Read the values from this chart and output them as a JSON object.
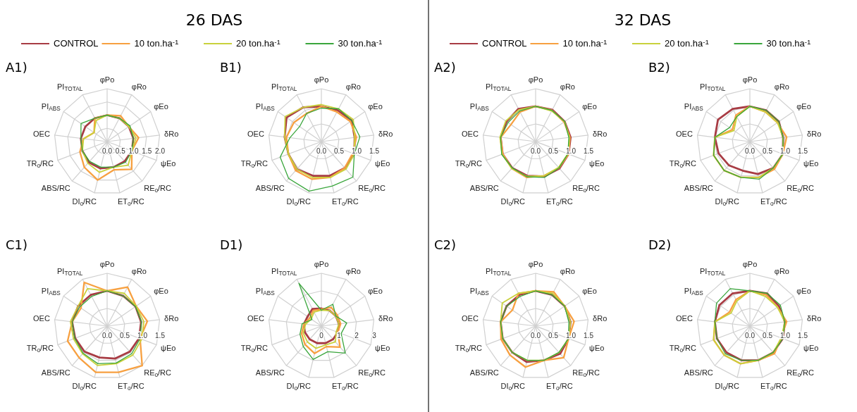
{
  "chart_data": [
    {
      "type": "radar",
      "title": "A1)",
      "subtitle": "26 DAS",
      "legend": "top",
      "categories": [
        "φPo",
        "φRo",
        "φEo",
        "δRo",
        "ψEo",
        "RE$_{o}$/RC",
        "ET$_{o}$/RC",
        "DI$_{o}$/RC",
        "ABS/RC",
        "TR$_{o}$/RC",
        "OEC",
        "PI$_{ABS}$",
        "PI$_{TOTAL}$"
      ],
      "ylim": [
        0,
        2
      ],
      "yticks": [
        {
          "value": 0,
          "label": "0.0"
        },
        0.5,
        {
          "value": 1,
          "label": "1.0"
        },
        1.5,
        {
          "value": 2,
          "label": "2.0"
        }
      ],
      "series": [
        {
          "name": "CONTROL",
          "color": "#a83c44",
          "values": [
            1.0,
            1.0,
            1.0,
            1.0,
            1.0,
            1.0,
            1.0,
            1.05,
            1.05,
            1.0,
            1.0,
            1.0,
            1.0
          ]
        },
        {
          "name": "10 ton.ha$^{-1}$",
          "color": "#f7a040",
          "values": [
            1.0,
            1.1,
            1.0,
            1.2,
            1.0,
            1.4,
            1.1,
            1.5,
            1.3,
            1.1,
            0.9,
            0.6,
            1.0
          ]
        },
        {
          "name": "20 ton.ha$^{-1}$",
          "color": "#c9d13c",
          "values": [
            1.0,
            1.0,
            1.0,
            1.1,
            1.0,
            1.2,
            1.0,
            1.2,
            1.1,
            1.0,
            0.9,
            0.6,
            0.9
          ]
        },
        {
          "name": "30 ton.ha$^{-1}$",
          "color": "#3aa63c",
          "values": [
            1.0,
            1.0,
            1.05,
            1.0,
            1.0,
            1.05,
            1.0,
            1.0,
            1.0,
            1.0,
            1.0,
            1.2,
            1.0
          ]
        }
      ]
    },
    {
      "type": "radar",
      "title": "B1)",
      "categories": [
        "φPo",
        "φRo",
        "φEo",
        "δRo",
        "ψEo",
        "RE$_{o}$/RC",
        "ET$_{o}$/RC",
        "DI$_{o}$/RC",
        "ABS/RC",
        "TR$_{o}$/RC",
        "OEC",
        "PI$_{ABS}$",
        "PI$_{TOTAL}$"
      ],
      "ylim": [
        0,
        1.5
      ],
      "yticks": [
        {
          "value": 0,
          "label": "0.0"
        },
        0.5,
        {
          "value": 1,
          "label": "1.0"
        },
        1.5
      ],
      "series": [
        {
          "color": "#a83c44",
          "values": [
            1.0,
            1.0,
            1.05,
            0.95,
            1.0,
            1.0,
            1.0,
            1.0,
            1.05,
            1.0,
            1.05,
            1.2,
            1.1
          ]
        },
        {
          "color": "#f7a040",
          "values": [
            1.0,
            0.95,
            1.0,
            1.0,
            0.95,
            1.0,
            1.05,
            1.1,
            1.1,
            1.0,
            1.0,
            0.95,
            0.9
          ]
        },
        {
          "color": "#c9d13c",
          "values": [
            1.05,
            1.05,
            1.1,
            0.95,
            1.0,
            1.05,
            1.05,
            1.05,
            1.05,
            1.0,
            1.05,
            1.25,
            1.1
          ]
        },
        {
          "color": "#3aa63c",
          "values": [
            0.95,
            1.05,
            1.05,
            1.1,
            1.0,
            1.35,
            1.3,
            1.45,
            1.4,
            1.25,
            0.9,
            0.75,
            0.9
          ]
        }
      ]
    },
    {
      "type": "radar",
      "title": "A2)",
      "subtitle": "32 DAS",
      "legend": "top",
      "categories": [
        "φPo",
        "φRo",
        "φEo",
        "δRo",
        "ψEo",
        "RE$_{o}$/RC",
        "ET$_{o}$/RC",
        "DI$_{o}$/RC",
        "ABS/RC",
        "TR$_{o}$/RC",
        "OEC",
        "PI$_{ABS}$",
        "PI$_{TOTAL}$"
      ],
      "ylim": [
        0,
        1.5
      ],
      "yticks": [
        {
          "value": 0,
          "label": "0.0"
        },
        0.5,
        {
          "value": 1,
          "label": "1.0"
        },
        1.5
      ],
      "series": [
        {
          "name": "CONTROL",
          "color": "#a83c44",
          "values": [
            1.0,
            1.02,
            1.0,
            1.0,
            1.0,
            1.02,
            1.02,
            1.0,
            1.0,
            1.0,
            1.0,
            1.0,
            1.05
          ]
        },
        {
          "name": "10 ton.ha$^{-1}$",
          "color": "#f7a040",
          "values": [
            1.0,
            1.0,
            0.98,
            0.98,
            1.0,
            1.0,
            1.0,
            1.05,
            1.02,
            1.0,
            1.0,
            0.85,
            0.95
          ]
        },
        {
          "name": "20 ton.ha$^{-1}$",
          "color": "#c9d13c",
          "values": [
            1.0,
            0.98,
            1.0,
            0.97,
            0.98,
            0.98,
            1.0,
            1.02,
            1.02,
            1.02,
            1.02,
            1.03,
            1.02
          ]
        },
        {
          "name": "30 ton.ha$^{-1}$",
          "color": "#3aa63c",
          "values": [
            1.0,
            1.0,
            1.0,
            0.95,
            0.98,
            1.0,
            1.05,
            1.03,
            1.0,
            1.03,
            1.0,
            0.95,
            0.98
          ]
        }
      ]
    },
    {
      "type": "radar",
      "title": "B2)",
      "categories": [
        "φPo",
        "φRo",
        "φEo",
        "δRo",
        "ψEo",
        "RE$_{o}$/RC",
        "ET$_{o}$/RC",
        "DI$_{o}$/RC",
        "ABS/RC",
        "TR$_{o}$/RC",
        "OEC",
        "PI$_{ABS}$",
        "PI$_{TOTAL}$"
      ],
      "ylim": [
        0,
        1.5
      ],
      "yticks": [
        {
          "value": 0,
          "label": "0.0"
        },
        0.5,
        {
          "value": 1,
          "label": "1.0"
        },
        1.5
      ],
      "series": [
        {
          "color": "#a83c44",
          "values": [
            1.0,
            1.0,
            1.0,
            0.95,
            1.0,
            1.0,
            0.95,
            0.85,
            0.9,
            0.95,
            1.0,
            1.1,
            1.05
          ]
        },
        {
          "color": "#f7a040",
          "values": [
            1.0,
            0.95,
            0.95,
            1.05,
            1.0,
            1.05,
            1.05,
            1.05,
            1.1,
            1.1,
            1.0,
            0.6,
            0.85
          ]
        },
        {
          "color": "#c9d13c",
          "values": [
            1.0,
            0.95,
            0.95,
            0.95,
            1.0,
            1.0,
            1.05,
            1.05,
            1.1,
            1.1,
            1.0,
            0.55,
            0.8
          ]
        },
        {
          "color": "#3aa63c",
          "values": [
            1.0,
            1.0,
            1.0,
            0.95,
            1.0,
            1.0,
            1.1,
            1.05,
            1.1,
            1.1,
            1.0,
            0.7,
            0.8
          ]
        }
      ]
    },
    {
      "type": "radar",
      "title": "C1)",
      "categories": [
        "φPo",
        "φRo",
        "φEo",
        "δRo",
        "ψEo",
        "RE$_{o}$/RC",
        "ET$_{o}$/RC",
        "DI$_{o}$/RC",
        "ABS/RC",
        "TR$_{o}$/RC",
        "OEC",
        "PI$_{ABS}$",
        "PI$_{TOTAL}$"
      ],
      "ylim": [
        0,
        1.5
      ],
      "yticks": [
        {
          "value": 0,
          "label": "0.0"
        },
        0.5,
        {
          "value": 1,
          "label": "1.0"
        },
        1.5
      ],
      "series": [
        {
          "color": "#a83c44",
          "values": [
            1.0,
            0.97,
            0.98,
            0.97,
            0.97,
            0.97,
            0.95,
            0.92,
            0.97,
            0.97,
            1.0,
            1.0,
            1.0
          ]
        },
        {
          "color": "#f7a040",
          "values": [
            1.0,
            1.25,
            1.0,
            1.15,
            1.0,
            1.5,
            1.35,
            1.35,
            1.2,
            1.2,
            1.0,
            0.9,
            1.4
          ]
        },
        {
          "color": "#c9d13c",
          "values": [
            1.0,
            1.05,
            1.0,
            1.05,
            1.05,
            1.1,
            1.1,
            1.15,
            1.05,
            1.02,
            1.05,
            1.0,
            1.2
          ]
        },
        {
          "color": "#3aa63c",
          "values": [
            1.0,
            0.97,
            0.98,
            0.98,
            1.0,
            1.05,
            1.08,
            1.1,
            1.03,
            0.98,
            1.0,
            0.95,
            0.95
          ]
        }
      ]
    },
    {
      "type": "radar",
      "title": "D1)",
      "categories": [
        "φPo",
        "φRo",
        "φEo",
        "δRo",
        "ψEo",
        "RE$_{o}$/RC",
        "ET$_{o}$/RC",
        "DI$_{o}$/RC",
        "ABS/RC",
        "TR$_{o}$/RC",
        "OEC",
        "PI$_{ABS}$",
        "PI$_{TOTAL}$"
      ],
      "ylim": [
        0,
        3
      ],
      "yticks": [
        0,
        1,
        2,
        3
      ],
      "series": [
        {
          "color": "#a83c44",
          "values": [
            1.0,
            1.0,
            1.0,
            1.0,
            1.0,
            1.0,
            1.0,
            1.0,
            1.0,
            1.0,
            1.0,
            0.95,
            1.1
          ]
        },
        {
          "color": "#f7a040",
          "values": [
            0.95,
            1.2,
            1.1,
            1.1,
            1.0,
            1.6,
            1.2,
            1.6,
            1.4,
            1.2,
            1.0,
            0.8,
            1.0
          ]
        },
        {
          "color": "#c9d13c",
          "values": [
            0.9,
            1.0,
            1.0,
            1.0,
            0.9,
            1.2,
            1.1,
            1.3,
            1.2,
            1.1,
            0.9,
            0.7,
            0.9
          ]
        },
        {
          "color": "#3aa63c",
          "values": [
            0.9,
            1.4,
            1.0,
            1.45,
            1.2,
            2.05,
            1.5,
            1.95,
            1.55,
            1.3,
            1.1,
            0.65,
            2.75
          ]
        }
      ]
    },
    {
      "type": "radar",
      "title": "C2)",
      "categories": [
        "φPo",
        "φRo",
        "φEo",
        "δRo",
        "ψEo",
        "RE$_{o}$/RC",
        "ET$_{o}$/RC",
        "DI$_{o}$/RC",
        "ABS/RC",
        "TR$_{o}$/RC",
        "OEC",
        "PI$_{ABS}$",
        "PI$_{TOTAL}$"
      ],
      "ylim": [
        0,
        1.5
      ],
      "yticks": [
        {
          "value": 0,
          "label": "0.0"
        },
        0.5,
        {
          "value": 1,
          "label": "1.0"
        },
        1.5
      ],
      "series": [
        {
          "color": "#a83c44",
          "values": [
            1.0,
            1.0,
            1.0,
            1.0,
            1.0,
            1.05,
            1.0,
            1.05,
            1.0,
            1.0,
            1.0,
            1.0,
            1.0
          ]
        },
        {
          "color": "#f7a040",
          "values": [
            1.0,
            1.1,
            1.0,
            1.1,
            1.0,
            1.2,
            1.0,
            1.2,
            1.1,
            1.05,
            1.0,
            0.8,
            1.05
          ]
        },
        {
          "color": "#c9d13c",
          "values": [
            1.0,
            1.05,
            1.0,
            1.0,
            1.0,
            1.0,
            1.0,
            1.0,
            1.0,
            1.0,
            1.0,
            1.15,
            1.05
          ]
        },
        {
          "color": "#3aa63c",
          "values": [
            1.0,
            1.0,
            1.0,
            0.95,
            1.0,
            1.0,
            1.0,
            1.0,
            1.0,
            1.0,
            1.0,
            1.0,
            0.95
          ]
        }
      ]
    },
    {
      "type": "radar",
      "title": "D2)",
      "categories": [
        "φPo",
        "φRo",
        "φEo",
        "δRo",
        "ψEo",
        "RE$_{o}$/RC",
        "ET$_{o}$/RC",
        "DI$_{o}$/RC",
        "ABS/RC",
        "TR$_{o}$/RC",
        "OEC",
        "PI$_{ABS}$",
        "PI$_{TOTAL}$"
      ],
      "ylim": [
        0,
        1.5
      ],
      "yticks": [
        {
          "value": 0,
          "label": "0.0"
        },
        0.5,
        {
          "value": 1,
          "label": "1.0"
        },
        1.5
      ],
      "series": [
        {
          "color": "#a83c44",
          "values": [
            1.0,
            1.05,
            1.0,
            1.0,
            1.0,
            1.0,
            1.0,
            1.0,
            1.0,
            1.0,
            1.0,
            1.05,
            1.05
          ]
        },
        {
          "color": "#f7a040",
          "values": [
            1.0,
            1.0,
            0.95,
            1.05,
            0.95,
            1.05,
            1.0,
            1.1,
            1.1,
            1.1,
            1.0,
            0.7,
            0.85
          ]
        },
        {
          "color": "#c9d13c",
          "values": [
            1.0,
            0.95,
            0.95,
            1.0,
            0.95,
            1.0,
            1.0,
            1.1,
            1.1,
            1.1,
            1.0,
            0.65,
            0.8
          ]
        },
        {
          "color": "#3aa63c",
          "values": [
            1.0,
            1.05,
            1.05,
            1.0,
            1.0,
            1.0,
            1.0,
            1.0,
            1.05,
            1.0,
            1.0,
            1.15,
            1.2
          ]
        }
      ]
    }
  ]
}
